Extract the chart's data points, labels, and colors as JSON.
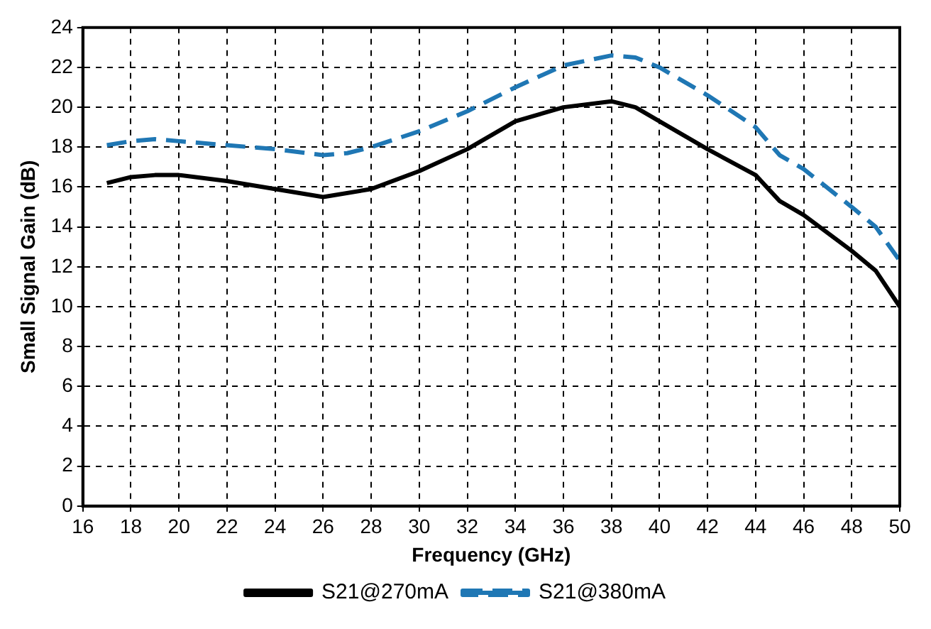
{
  "chart_data": {
    "type": "line",
    "xlabel": "Frequency (GHz)",
    "ylabel": "Small Signal Gain (dB)",
    "xlim": [
      16,
      50
    ],
    "xticks": [
      16,
      18,
      20,
      22,
      24,
      26,
      28,
      30,
      32,
      34,
      36,
      38,
      40,
      42,
      44,
      46,
      48,
      50
    ],
    "ylim": [
      0,
      24
    ],
    "yticks": [
      0,
      2,
      4,
      6,
      8,
      10,
      12,
      14,
      16,
      18,
      20,
      22,
      24
    ],
    "grid": true,
    "legend": "bottom",
    "marker": "none",
    "series": [
      {
        "name": "S21@270mA",
        "color": "#000000",
        "line_style": "solid",
        "x": [
          17,
          18,
          19,
          20,
          22,
          24,
          26,
          28,
          30,
          32,
          34,
          36,
          38,
          39,
          40,
          42,
          44,
          45,
          46,
          48,
          49,
          50
        ],
        "values": [
          16.2,
          16.5,
          16.6,
          16.6,
          16.3,
          15.9,
          15.5,
          15.9,
          16.8,
          17.9,
          19.3,
          20.0,
          20.3,
          20.0,
          19.3,
          17.9,
          16.6,
          15.3,
          14.6,
          12.8,
          11.8,
          10.0
        ]
      },
      {
        "name": "S21@380mA",
        "color": "#1f77b4",
        "line_style": "dashed",
        "x": [
          17,
          18,
          19,
          20,
          22,
          24,
          26,
          27,
          28,
          30,
          32,
          34,
          36,
          38,
          39,
          40,
          42,
          44,
          45,
          46,
          48,
          49,
          50
        ],
        "values": [
          18.1,
          18.3,
          18.4,
          18.3,
          18.1,
          17.9,
          17.6,
          17.7,
          18.0,
          18.8,
          19.8,
          21.0,
          22.1,
          22.6,
          22.5,
          22.0,
          20.6,
          19.0,
          17.6,
          16.9,
          15.0,
          14.0,
          12.3
        ]
      }
    ]
  }
}
